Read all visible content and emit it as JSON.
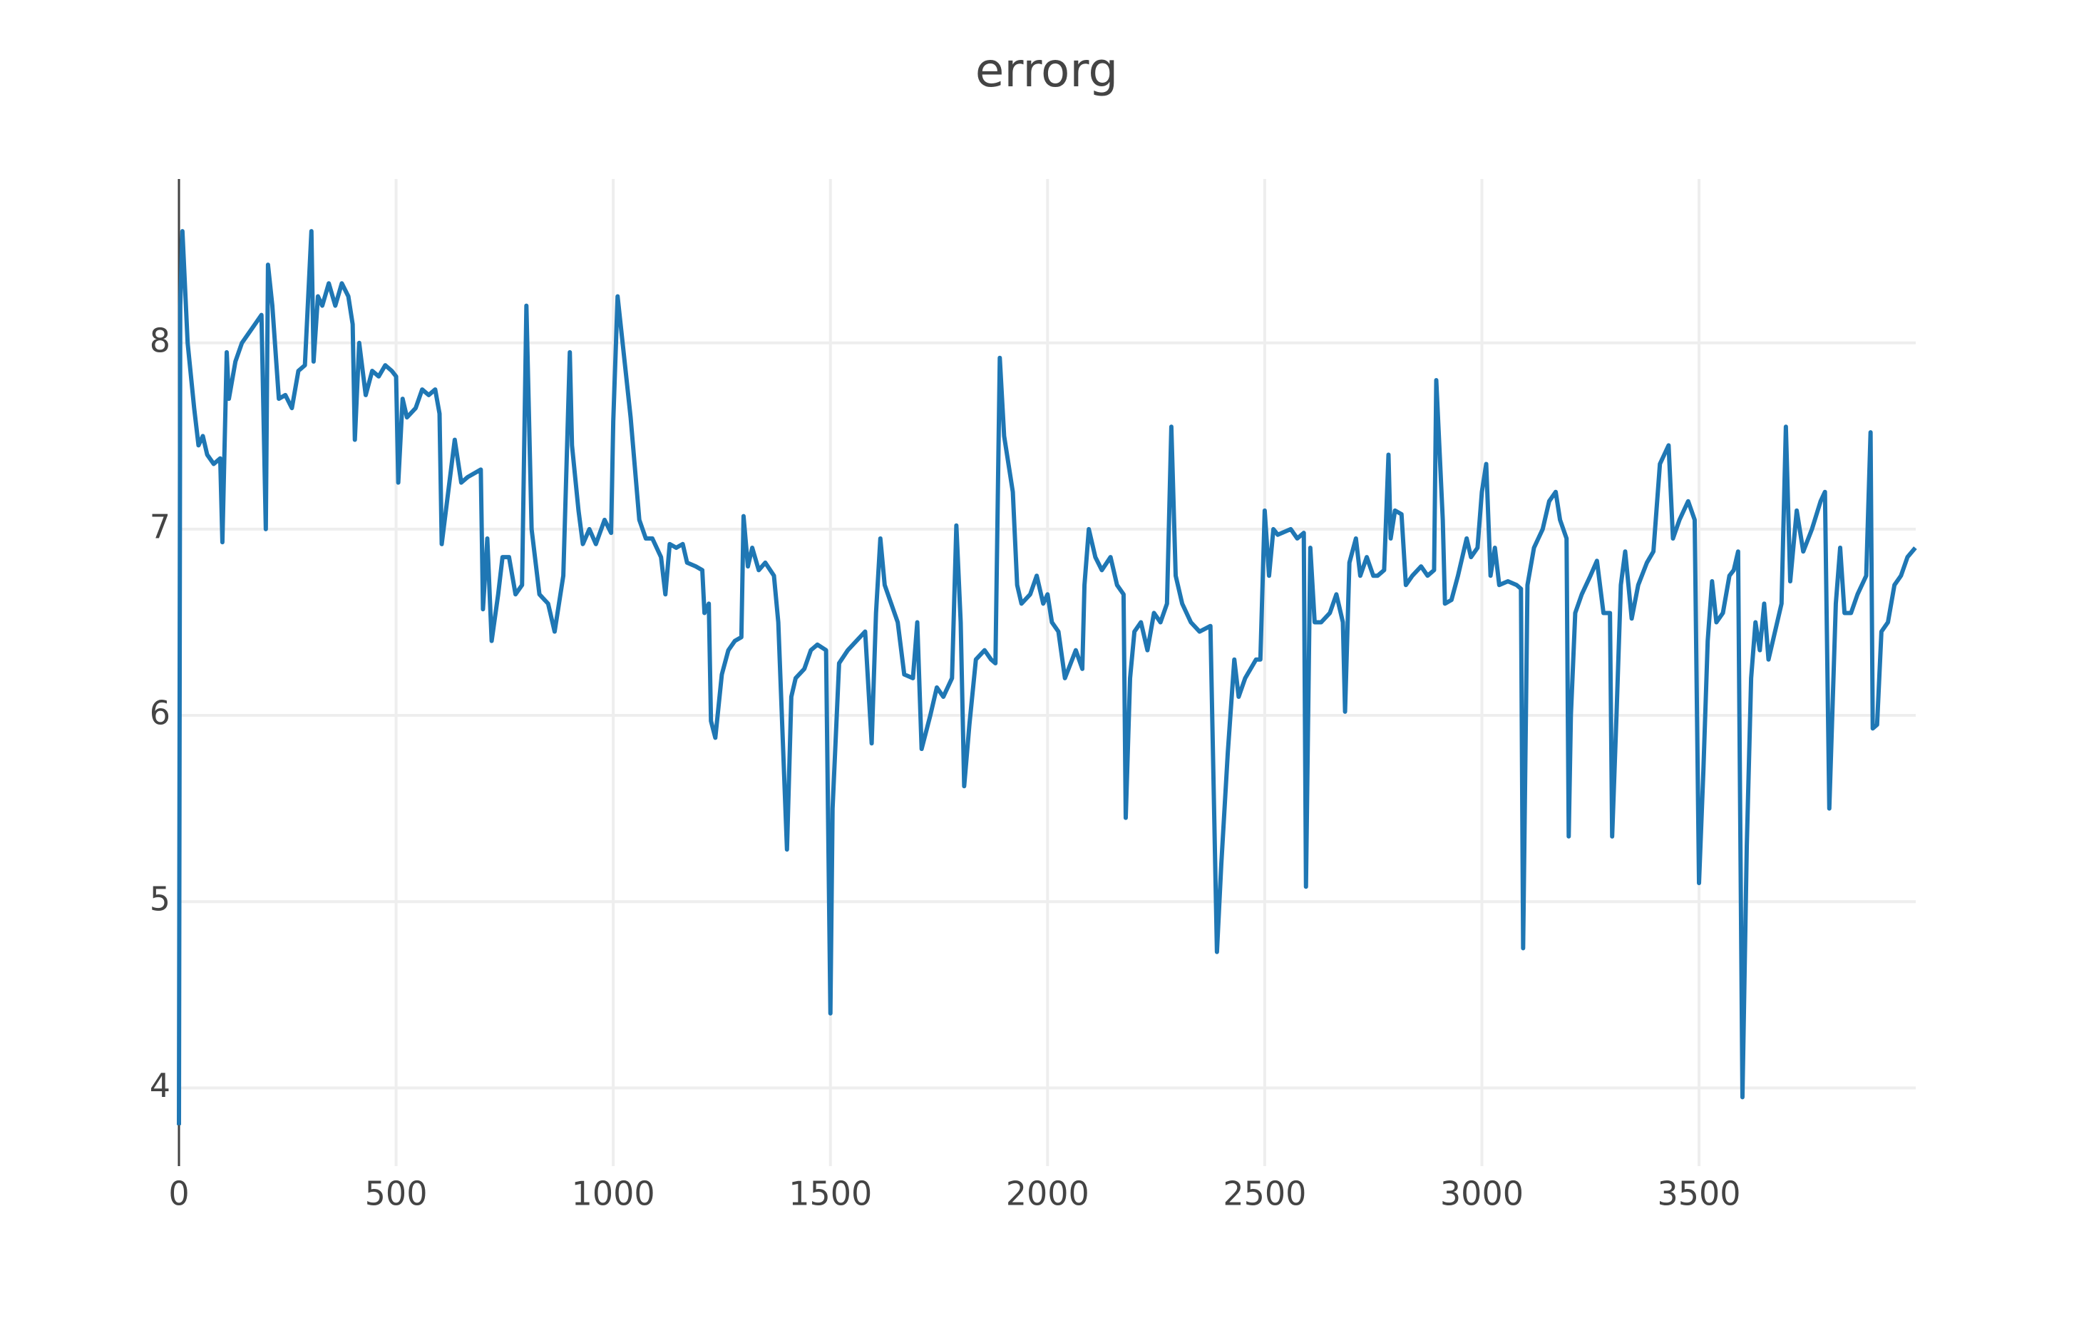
{
  "chart_data": {
    "type": "line",
    "title": "errorg",
    "color": "#1f77b4",
    "grid": true,
    "xlim": [
      0,
      3999
    ],
    "xticks": [
      0,
      500,
      1000,
      1500,
      2000,
      2500,
      3000,
      3500
    ],
    "ylim": [
      3.58,
      8.88
    ],
    "yticks": [
      4,
      5,
      6,
      7,
      8
    ],
    "x": [
      0,
      3,
      8,
      12,
      20,
      35,
      45,
      55,
      65,
      80,
      95,
      100,
      110,
      115,
      130,
      145,
      160,
      175,
      190,
      200,
      205,
      215,
      230,
      245,
      260,
      275,
      290,
      305,
      310,
      320,
      330,
      345,
      360,
      375,
      390,
      400,
      405,
      415,
      430,
      445,
      460,
      475,
      490,
      500,
      505,
      515,
      525,
      545,
      560,
      575,
      590,
      600,
      605,
      620,
      635,
      650,
      665,
      680,
      695,
      700,
      710,
      720,
      735,
      745,
      760,
      775,
      790,
      800,
      812,
      830,
      850,
      865,
      885,
      900,
      905,
      920,
      930,
      945,
      960,
      980,
      995,
      1000,
      1010,
      1040,
      1060,
      1075,
      1090,
      1110,
      1120,
      1130,
      1145,
      1160,
      1170,
      1190,
      1205,
      1210,
      1220,
      1225,
      1235,
      1250,
      1265,
      1280,
      1295,
      1300,
      1310,
      1320,
      1335,
      1350,
      1370,
      1380,
      1400,
      1410,
      1420,
      1440,
      1455,
      1470,
      1490,
      1500,
      1505,
      1520,
      1540,
      1560,
      1580,
      1595,
      1605,
      1615,
      1625,
      1640,
      1655,
      1670,
      1690,
      1700,
      1710,
      1730,
      1745,
      1760,
      1780,
      1790,
      1800,
      1808,
      1820,
      1835,
      1855,
      1870,
      1880,
      1890,
      1900,
      1910,
      1920,
      1930,
      1940,
      1960,
      1975,
      1990,
      2000,
      2010,
      2025,
      2040,
      2065,
      2080,
      2085,
      2095,
      2110,
      2125,
      2145,
      2160,
      2175,
      2180,
      2190,
      2200,
      2215,
      2230,
      2245,
      2260,
      2275,
      2285,
      2295,
      2310,
      2330,
      2350,
      2375,
      2390,
      2400,
      2415,
      2430,
      2440,
      2455,
      2480,
      2490,
      2500,
      2510,
      2520,
      2530,
      2560,
      2575,
      2590,
      2595,
      2605,
      2615,
      2630,
      2650,
      2665,
      2680,
      2685,
      2695,
      2710,
      2720,
      2735,
      2750,
      2760,
      2775,
      2785,
      2790,
      2800,
      2815,
      2825,
      2840,
      2860,
      2875,
      2890,
      2895,
      2910,
      2915,
      2930,
      2945,
      2965,
      2975,
      2990,
      3000,
      3010,
      3020,
      3030,
      3040,
      3060,
      3080,
      3090,
      3095,
      3105,
      3120,
      3140,
      3155,
      3170,
      3180,
      3195,
      3200,
      3205,
      3215,
      3230,
      3250,
      3265,
      3280,
      3295,
      3300,
      3310,
      3320,
      3330,
      3345,
      3360,
      3380,
      3395,
      3410,
      3420,
      3430,
      3440,
      3455,
      3475,
      3490,
      3500,
      3510,
      3520,
      3530,
      3540,
      3555,
      3570,
      3580,
      3590,
      3600,
      3610,
      3620,
      3630,
      3640,
      3650,
      3660,
      3675,
      3690,
      3700,
      3710,
      3725,
      3740,
      3760,
      3780,
      3790,
      3800,
      3815,
      3825,
      3835,
      3850,
      3865,
      3885,
      3895,
      3900,
      3910,
      3920,
      3935,
      3950,
      3965,
      3980,
      3998
    ],
    "values": [
      3.8,
      8.2,
      8.6,
      8.4,
      8.0,
      7.65,
      7.45,
      7.5,
      7.4,
      7.35,
      7.38,
      6.93,
      7.95,
      7.7,
      7.9,
      8.0,
      8.05,
      8.1,
      8.15,
      7.0,
      8.42,
      8.2,
      7.7,
      7.72,
      7.65,
      7.85,
      7.88,
      8.6,
      7.9,
      8.25,
      8.2,
      8.32,
      8.2,
      8.32,
      8.25,
      8.1,
      7.48,
      8.0,
      7.72,
      7.85,
      7.82,
      7.88,
      7.85,
      7.82,
      7.25,
      7.7,
      7.6,
      7.65,
      7.75,
      7.72,
      7.75,
      7.62,
      6.92,
      7.2,
      7.48,
      7.25,
      7.28,
      7.3,
      7.32,
      6.57,
      6.95,
      6.4,
      6.65,
      6.85,
      6.85,
      6.65,
      6.7,
      8.2,
      7.0,
      6.65,
      6.6,
      6.45,
      6.75,
      7.95,
      7.45,
      7.1,
      6.92,
      7.0,
      6.92,
      7.05,
      6.98,
      7.58,
      8.25,
      7.6,
      7.05,
      6.95,
      6.95,
      6.85,
      6.65,
      6.92,
      6.9,
      6.92,
      6.82,
      6.8,
      6.78,
      6.55,
      6.6,
      5.97,
      5.88,
      6.22,
      6.35,
      6.4,
      6.42,
      7.07,
      6.8,
      6.9,
      6.78,
      6.82,
      6.75,
      6.5,
      5.28,
      6.1,
      6.2,
      6.25,
      6.35,
      6.38,
      6.35,
      4.4,
      5.5,
      6.28,
      6.35,
      6.4,
      6.45,
      5.85,
      6.55,
      6.95,
      6.7,
      6.6,
      6.5,
      6.22,
      6.2,
      6.5,
      5.82,
      6.0,
      6.15,
      6.1,
      6.2,
      7.02,
      6.5,
      5.62,
      5.95,
      6.3,
      6.35,
      6.3,
      6.28,
      7.92,
      7.5,
      7.35,
      7.2,
      6.7,
      6.6,
      6.65,
      6.75,
      6.6,
      6.65,
      6.5,
      6.45,
      6.2,
      6.35,
      6.25,
      6.7,
      7.0,
      6.85,
      6.78,
      6.85,
      6.7,
      6.65,
      5.45,
      6.2,
      6.45,
      6.5,
      6.35,
      6.55,
      6.5,
      6.6,
      7.55,
      6.75,
      6.6,
      6.5,
      6.45,
      6.48,
      4.73,
      5.2,
      5.8,
      6.3,
      6.1,
      6.2,
      6.3,
      6.3,
      7.1,
      6.75,
      7.0,
      6.97,
      7.0,
      6.95,
      6.98,
      5.08,
      6.9,
      6.5,
      6.5,
      6.55,
      6.65,
      6.5,
      6.02,
      6.82,
      6.95,
      6.75,
      6.85,
      6.75,
      6.75,
      6.78,
      7.4,
      6.95,
      7.1,
      7.08,
      6.7,
      6.75,
      6.8,
      6.75,
      6.78,
      7.8,
      7.05,
      6.6,
      6.62,
      6.75,
      6.95,
      6.85,
      6.9,
      7.2,
      7.35,
      6.75,
      6.9,
      6.7,
      6.72,
      6.7,
      6.68,
      4.75,
      6.7,
      6.9,
      7.0,
      7.15,
      7.2,
      7.05,
      6.95,
      5.35,
      6.0,
      6.55,
      6.65,
      6.75,
      6.83,
      6.55,
      6.55,
      5.35,
      6.0,
      6.7,
      6.88,
      6.52,
      6.7,
      6.82,
      6.88,
      7.35,
      7.4,
      7.45,
      6.95,
      7.05,
      7.15,
      7.05,
      5.1,
      5.7,
      6.4,
      6.72,
      6.5,
      6.55,
      6.75,
      6.78,
      6.88,
      3.95,
      5.3,
      6.2,
      6.5,
      6.35,
      6.6,
      6.3,
      6.45,
      6.6,
      7.55,
      6.72,
      7.1,
      6.88,
      7.0,
      7.15,
      7.2,
      5.5,
      6.6,
      6.9,
      6.55,
      6.55,
      6.65,
      6.75,
      7.52,
      5.93,
      5.95,
      6.45,
      6.5,
      6.7,
      6.75,
      6.85,
      6.9
    ]
  }
}
